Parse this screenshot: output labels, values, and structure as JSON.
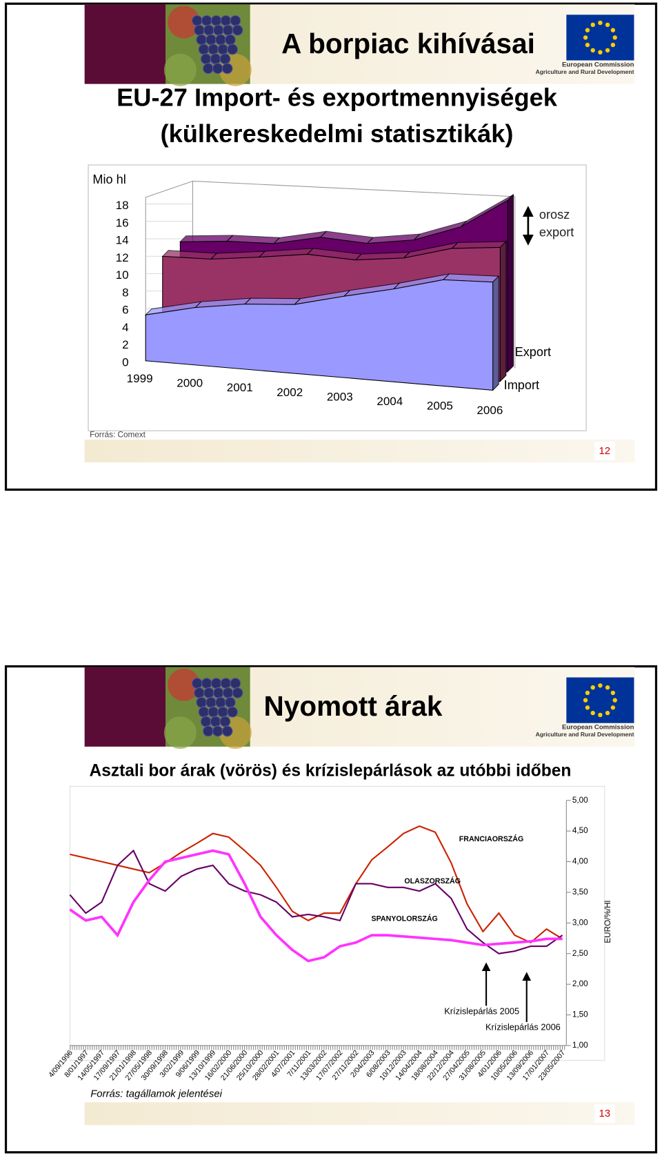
{
  "slides": [
    {
      "header": "A borpiac kihívásai",
      "logo": [
        "European Commission",
        "Agriculture and Rural Development"
      ],
      "title": [
        "EU-27 Import- és exportmennyiségek",
        "(külkereskedelmi statisztikák)"
      ],
      "source": "Forrás: Comext",
      "page_number": 12
    },
    {
      "header": "Nyomott árak",
      "logo": [
        "European Commission",
        "Agriculture and Rural Development"
      ],
      "title": [
        "Asztali bor árak (vörös) és krízislepárlások az utóbbi időben"
      ],
      "source": "Forrás: tagállamok jelentései",
      "page_number": 13
    }
  ],
  "chart_data": [
    {
      "type": "area3d",
      "y_label": "Mio hl",
      "categories": [
        "1999",
        "2000",
        "2001",
        "2002",
        "2003",
        "2004",
        "2005",
        "2006"
      ],
      "series": [
        {
          "color": "#660066",
          "values": [
            11.2,
            11.6,
            11.7,
            12.7,
            12.4,
            13.1,
            14.8,
            17.9
          ]
        },
        {
          "name": "Export",
          "color": "#993366",
          "values": [
            10.3,
            10.4,
            11,
            11.7,
            11.5,
            12.1,
            13.5,
            14
          ]
        },
        {
          "name": "Import",
          "color": "#9999ff",
          "values": [
            4.8,
            6,
            6.8,
            7.2,
            8.5,
            9.7,
            11.1,
            11.3
          ]
        }
      ],
      "ylim": [
        0,
        18
      ],
      "yticks": [
        0,
        2,
        4,
        6,
        8,
        10,
        12,
        14,
        16,
        18
      ],
      "annotation": "orosz export"
    },
    {
      "type": "line",
      "categories": [
        "4/09/1996",
        "8/01/1997",
        "14/05/1997",
        "17/09/1997",
        "21/01/1998",
        "27/05/1998",
        "30/09/1998",
        "3/02/1999",
        "9/06/1999",
        "13/10/1999",
        "16/02/2000",
        "21/06/2000",
        "25/10/2000",
        "28/02/2001",
        "4/07/2001",
        "7/11/2001",
        "13/03/2002",
        "17/07/2002",
        "27/11/2002",
        "2/04/2003",
        "6/08/2003",
        "10/12/2003",
        "14/04/2004",
        "18/08/2004",
        "22/12/2004",
        "27/04/2005",
        "31/08/2005",
        "4/01/2006",
        "10/05/2006",
        "13/09/2006",
        "17/01/2007",
        "23/05/2007"
      ],
      "series": [
        {
          "name": "FRANCIAORSZÁG",
          "color": "#cc2200",
          "values": [
            4.12,
            4.06,
            4.0,
            3.94,
            3.88,
            3.82,
            3.98,
            4.15,
            4.3,
            4.46,
            4.4,
            4.18,
            3.94,
            3.58,
            3.19,
            3.04,
            3.16,
            3.16,
            3.64,
            4.03,
            4.24,
            4.46,
            4.58,
            4.48,
            3.98,
            3.31,
            2.86,
            3.16,
            2.8,
            2.68,
            2.9,
            2.74
          ]
        },
        {
          "name": "OLASZORSZÁG",
          "color": "#660066",
          "values": [
            3.46,
            3.16,
            3.34,
            3.94,
            4.18,
            3.64,
            3.52,
            3.76,
            3.88,
            3.94,
            3.64,
            3.52,
            3.46,
            3.34,
            3.1,
            3.14,
            3.1,
            3.04,
            3.64,
            3.64,
            3.58,
            3.58,
            3.52,
            3.64,
            3.4,
            2.9,
            2.68,
            2.5,
            2.54,
            2.62,
            2.62,
            2.8
          ]
        },
        {
          "name": "SPANYOLORSZÁG",
          "color": "#ff33ff",
          "values": [
            3.22,
            3.04,
            3.1,
            2.8,
            3.34,
            3.7,
            4.0,
            4.06,
            4.12,
            4.18,
            4.12,
            3.64,
            3.1,
            2.8,
            2.56,
            2.38,
            2.44,
            2.62,
            2.68,
            2.8,
            2.8,
            2.78,
            2.76,
            2.74,
            2.72,
            2.68,
            2.64,
            2.66,
            2.68,
            2.7,
            2.74,
            2.74
          ]
        }
      ],
      "ylim": [
        1,
        5
      ],
      "yticks": [
        {
          "value": 1,
          "label": "1,00"
        },
        {
          "value": 1.5,
          "label": "1,50"
        },
        {
          "value": 2,
          "label": "2,00"
        },
        {
          "value": 2.5,
          "label": "2,50"
        },
        {
          "value": 3,
          "label": "3,00"
        },
        {
          "value": 3.5,
          "label": "3,50"
        },
        {
          "value": 4,
          "label": "4,00"
        },
        {
          "value": 4.5,
          "label": "4,50"
        },
        {
          "value": 5,
          "label": "5,00"
        }
      ],
      "y_label": "EURO/%/Hl",
      "annotations": [
        "Krízislepárlás 2005",
        "Krízislepárlás 2006"
      ]
    }
  ]
}
